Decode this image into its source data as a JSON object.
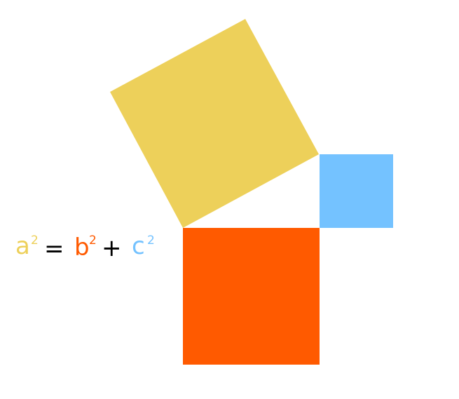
{
  "colors": {
    "a": "#EDD05A",
    "b": "#FF5A00",
    "c": "#74C2FF",
    "operator": "#000000"
  },
  "equation": {
    "a": "a",
    "a_exp": "2",
    "equals": "=",
    "b": "b",
    "b_exp": "2",
    "plus": "+",
    "c": "c",
    "c_exp": "2"
  }
}
